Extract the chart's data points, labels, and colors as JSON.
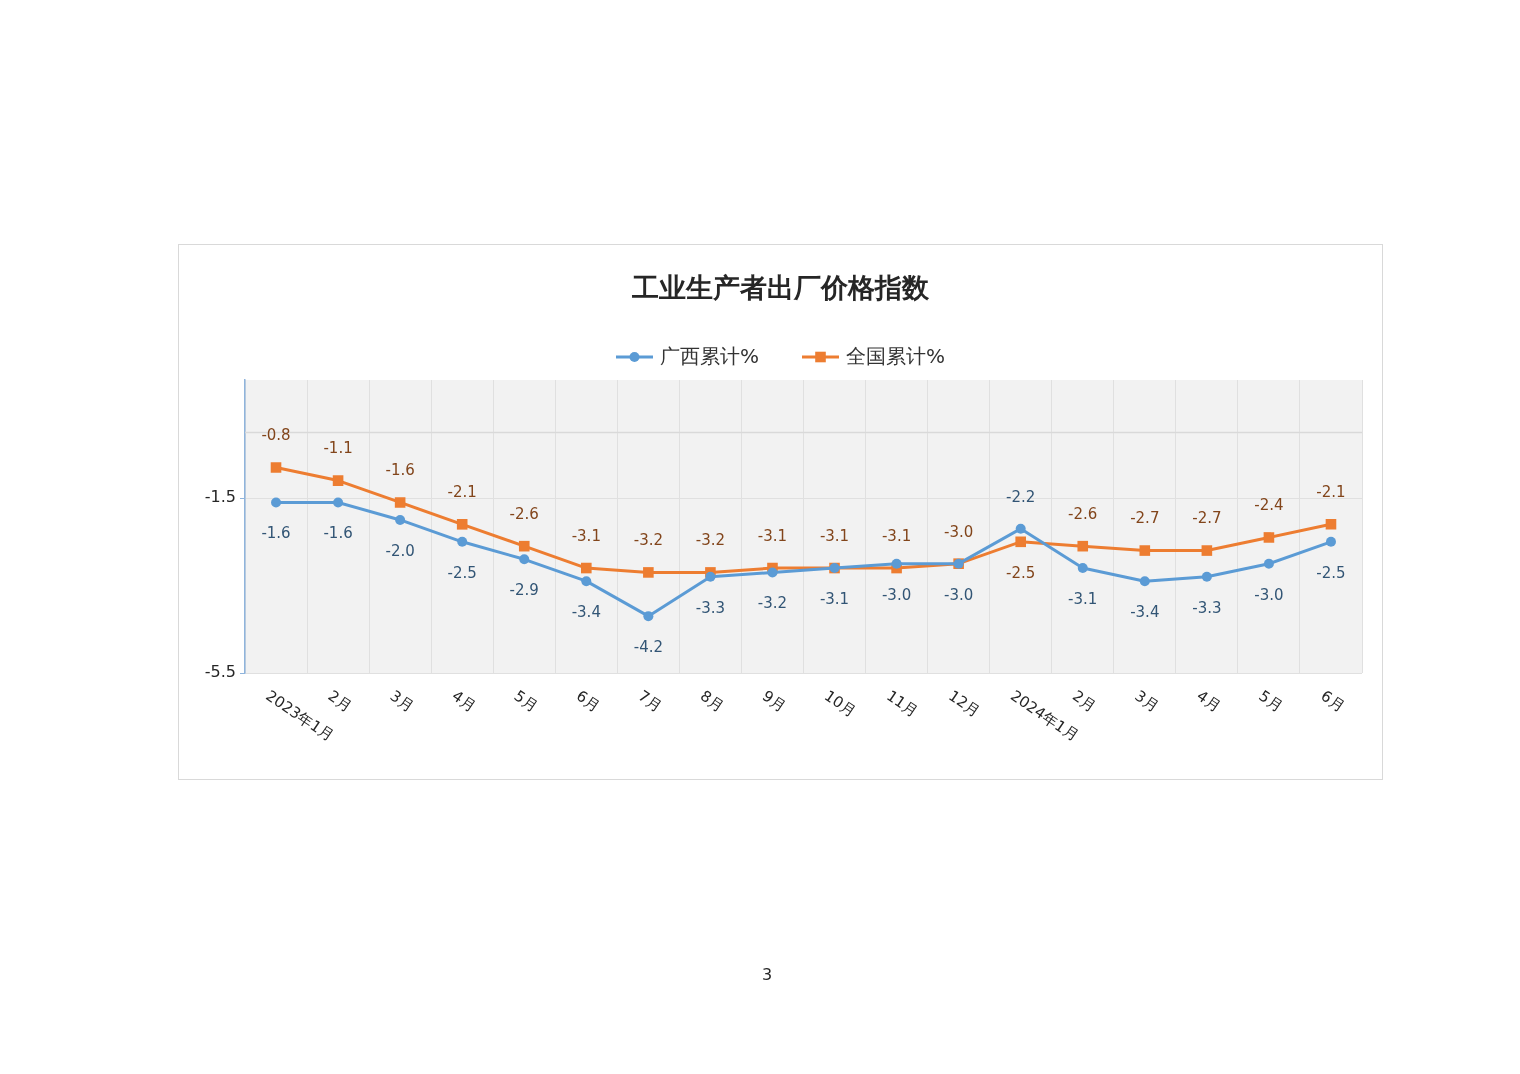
{
  "chart_data": {
    "type": "line",
    "title": "工业生产者出厂价格指数",
    "categories": [
      "2023年1月",
      "2月",
      "3月",
      "4月",
      "5月",
      "6月",
      "7月",
      "8月",
      "9月",
      "10月",
      "11月",
      "12月",
      "2024年1月",
      "2月",
      "3月",
      "4月",
      "5月",
      "6月"
    ],
    "series": [
      {
        "name": "广西累计%",
        "color": "#5b9bd5",
        "marker": "circle",
        "values": [
          -1.6,
          -1.6,
          -2.0,
          -2.5,
          -2.9,
          -3.4,
          -4.2,
          -3.3,
          -3.2,
          -3.1,
          -3.0,
          -3.0,
          -2.2,
          -3.1,
          -3.4,
          -3.3,
          -3.0,
          -2.5
        ],
        "value_labels": [
          "-1.6",
          "-1.6",
          "-2.0",
          "-2.5",
          "-2.9",
          "-3.4",
          "-4.2",
          "-3.3",
          "-3.2",
          "-3.1",
          "-3.0",
          "-3.0",
          "-2.2",
          "-3.1",
          "-3.4",
          "-3.3",
          "-3.0",
          "-2.5"
        ]
      },
      {
        "name": "全国累计%",
        "color": "#ed7d31",
        "marker": "square",
        "values": [
          -0.8,
          -1.1,
          -1.6,
          -2.1,
          -2.6,
          -3.1,
          -3.2,
          -3.2,
          -3.1,
          -3.1,
          -3.1,
          -3.0,
          -2.5,
          -2.6,
          -2.7,
          -2.7,
          -2.4,
          -2.1
        ],
        "value_labels": [
          "-0.8",
          "-1.1",
          "-1.6",
          "-2.1",
          "-2.6",
          "-3.1",
          "-3.2",
          "-3.2",
          "-3.1",
          "-3.1",
          "-3.1",
          "-3.0",
          "-2.5",
          "-2.6",
          "-2.7",
          "-2.7",
          "-2.4",
          "-2.1"
        ]
      }
    ],
    "ylim": [
      -5.5,
      1.2
    ],
    "yticks": [
      -5.5,
      -1.5
    ],
    "grid": true,
    "legend": "top",
    "ref_lines": [
      {
        "axis": "y",
        "value": 0,
        "color": "#d9d9d9"
      }
    ],
    "annotations": [
      "3"
    ]
  }
}
